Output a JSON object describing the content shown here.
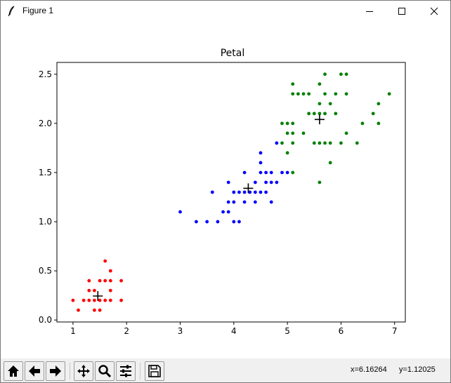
{
  "window": {
    "title": "Figure 1"
  },
  "toolbar": {
    "buttons": [
      "home-icon",
      "back-arrow-icon",
      "forward-arrow-icon",
      "pan-icon",
      "zoom-icon",
      "configure-subplots-icon",
      "save-icon"
    ],
    "coord_x": "x=6.16264",
    "coord_y": "y=1.12025"
  },
  "chart_data": {
    "type": "scatter",
    "title": "Petal",
    "xlabel": "",
    "ylabel": "",
    "xlim": [
      0.7,
      7.2
    ],
    "ylim": [
      -0.02,
      2.62
    ],
    "xticks": [
      1,
      2,
      3,
      4,
      5,
      6,
      7
    ],
    "yticks": [
      0.0,
      0.5,
      1.0,
      1.5,
      2.0,
      2.5
    ],
    "xtick_labels": [
      "1",
      "2",
      "3",
      "4",
      "5",
      "6",
      "7"
    ],
    "ytick_labels": [
      "0.0",
      "0.5",
      "1.0",
      "1.5",
      "2.0",
      "2.5"
    ],
    "grid": false,
    "series": [
      {
        "color": "#ff0000",
        "points": [
          [
            1.0,
            0.2
          ],
          [
            1.1,
            0.1
          ],
          [
            1.2,
            0.2
          ],
          [
            1.3,
            0.2
          ],
          [
            1.3,
            0.3
          ],
          [
            1.3,
            0.4
          ],
          [
            1.4,
            0.1
          ],
          [
            1.4,
            0.2
          ],
          [
            1.4,
            0.3
          ],
          [
            1.5,
            0.1
          ],
          [
            1.5,
            0.2
          ],
          [
            1.5,
            0.4
          ],
          [
            1.6,
            0.2
          ],
          [
            1.6,
            0.4
          ],
          [
            1.6,
            0.6
          ],
          [
            1.7,
            0.2
          ],
          [
            1.7,
            0.3
          ],
          [
            1.7,
            0.4
          ],
          [
            1.7,
            0.5
          ],
          [
            1.9,
            0.2
          ],
          [
            1.9,
            0.4
          ]
        ]
      },
      {
        "color": "#0000ff",
        "points": [
          [
            3.0,
            1.1
          ],
          [
            3.3,
            1.0
          ],
          [
            3.5,
            1.0
          ],
          [
            3.6,
            1.3
          ],
          [
            3.7,
            1.0
          ],
          [
            3.8,
            1.1
          ],
          [
            3.9,
            1.1
          ],
          [
            3.9,
            1.2
          ],
          [
            3.9,
            1.4
          ],
          [
            4.0,
            1.0
          ],
          [
            4.0,
            1.2
          ],
          [
            4.0,
            1.3
          ],
          [
            4.1,
            1.0
          ],
          [
            4.1,
            1.3
          ],
          [
            4.2,
            1.2
          ],
          [
            4.2,
            1.3
          ],
          [
            4.2,
            1.5
          ],
          [
            4.3,
            1.3
          ],
          [
            4.4,
            1.2
          ],
          [
            4.4,
            1.3
          ],
          [
            4.4,
            1.4
          ],
          [
            4.5,
            1.3
          ],
          [
            4.5,
            1.5
          ],
          [
            4.5,
            1.6
          ],
          [
            4.5,
            1.7
          ],
          [
            4.6,
            1.3
          ],
          [
            4.6,
            1.4
          ],
          [
            4.6,
            1.5
          ],
          [
            4.7,
            1.2
          ],
          [
            4.7,
            1.4
          ],
          [
            4.7,
            1.5
          ],
          [
            4.8,
            1.4
          ],
          [
            4.8,
            1.8
          ],
          [
            4.9,
            1.5
          ],
          [
            5.0,
            1.5
          ]
        ]
      },
      {
        "color": "#008000",
        "points": [
          [
            4.9,
            1.8
          ],
          [
            4.9,
            2.0
          ],
          [
            5.0,
            1.7
          ],
          [
            5.0,
            1.9
          ],
          [
            5.0,
            2.0
          ],
          [
            5.1,
            1.5
          ],
          [
            5.1,
            1.8
          ],
          [
            5.1,
            1.9
          ],
          [
            5.1,
            2.0
          ],
          [
            5.1,
            2.3
          ],
          [
            5.1,
            2.4
          ],
          [
            5.2,
            2.3
          ],
          [
            5.3,
            2.3
          ],
          [
            5.3,
            1.9
          ],
          [
            5.4,
            2.1
          ],
          [
            5.4,
            2.3
          ],
          [
            5.5,
            1.8
          ],
          [
            5.5,
            2.1
          ],
          [
            5.6,
            1.4
          ],
          [
            5.6,
            1.8
          ],
          [
            5.6,
            2.1
          ],
          [
            5.6,
            2.2
          ],
          [
            5.6,
            2.4
          ],
          [
            5.7,
            1.8
          ],
          [
            5.7,
            2.1
          ],
          [
            5.7,
            2.3
          ],
          [
            5.7,
            2.5
          ],
          [
            5.8,
            1.6
          ],
          [
            5.8,
            1.8
          ],
          [
            5.8,
            2.2
          ],
          [
            5.9,
            2.1
          ],
          [
            5.9,
            2.3
          ],
          [
            6.0,
            1.8
          ],
          [
            6.0,
            2.5
          ],
          [
            6.1,
            1.9
          ],
          [
            6.1,
            2.3
          ],
          [
            6.1,
            2.5
          ],
          [
            6.3,
            1.8
          ],
          [
            6.4,
            2.0
          ],
          [
            6.6,
            2.1
          ],
          [
            6.7,
            2.0
          ],
          [
            6.7,
            2.2
          ],
          [
            6.9,
            2.3
          ]
        ]
      }
    ],
    "centroids": {
      "color": "#000000",
      "points": [
        [
          1.464,
          0.244
        ],
        [
          4.27,
          1.34
        ],
        [
          5.6,
          2.04
        ]
      ]
    }
  }
}
